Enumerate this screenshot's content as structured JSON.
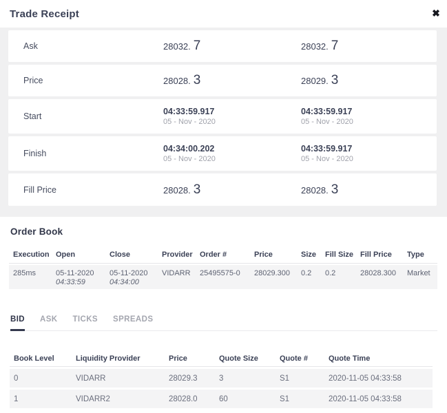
{
  "modal": {
    "title": "Trade Receipt",
    "close_icon": "✖"
  },
  "receipt": {
    "rows": [
      {
        "label": "Ask",
        "left": {
          "main": "28032.",
          "big": "7"
        },
        "right": {
          "main": "28032.",
          "big": "7"
        }
      },
      {
        "label": "Price",
        "left": {
          "main": "28028.",
          "big": "3"
        },
        "right": {
          "main": "28029.",
          "big": "3"
        }
      },
      {
        "label": "Start",
        "left": {
          "time": "04:33:59.917",
          "date": "05 - Nov - 2020"
        },
        "right": {
          "time": "04:33:59.917",
          "date": "05 - Nov - 2020"
        }
      },
      {
        "label": "Finish",
        "left": {
          "time": "04:34:00.202",
          "date": "05 - Nov - 2020"
        },
        "right": {
          "time": "04:33:59.917",
          "date": "05 - Nov - 2020"
        }
      },
      {
        "label": "Fill Price",
        "left": {
          "main": "28028.",
          "big": "3"
        },
        "right": {
          "main": "28028.",
          "big": "3"
        }
      }
    ]
  },
  "order_book": {
    "heading": "Order Book",
    "columns": [
      "Execution",
      "Open",
      "Close",
      "Provider",
      "Order #",
      "Price",
      "Size",
      "Fill Size",
      "Fill Price",
      "Type"
    ],
    "row": {
      "execution": "285ms",
      "open_date": "05-11-2020",
      "open_time": "04:33:59",
      "close_date": "05-11-2020",
      "close_time": "04:34:00",
      "provider": "VIDARR",
      "order_num": "25495575-0",
      "price": "28029.300",
      "size": "0.2",
      "fill_size": "0.2",
      "fill_price": "28028.300",
      "type": "Market"
    }
  },
  "tabs": [
    {
      "label": "BID",
      "active": true
    },
    {
      "label": "ASK",
      "active": false
    },
    {
      "label": "TICKS",
      "active": false
    },
    {
      "label": "SPREADS",
      "active": false
    }
  ],
  "quotes": {
    "columns": [
      "Book Level",
      "Liquidity Provider",
      "Price",
      "Quote Size",
      "Quote #",
      "Quote Time"
    ],
    "rows": [
      [
        "0",
        "VIDARR",
        "28029.3",
        "3",
        "S1",
        "2020-11-05 04:33:58"
      ],
      [
        "1",
        "VIDARR2",
        "28028.0",
        "60",
        "S1",
        "2020-11-05 04:33:58"
      ]
    ]
  },
  "colors": {
    "primary_text": "#3b4156",
    "secondary_text": "#a0a2ab",
    "section_background": "#f0f0f1",
    "row_background": "#f4f4f5",
    "active_tab_underline": "#34394e",
    "separator": "#e6e6e9"
  }
}
